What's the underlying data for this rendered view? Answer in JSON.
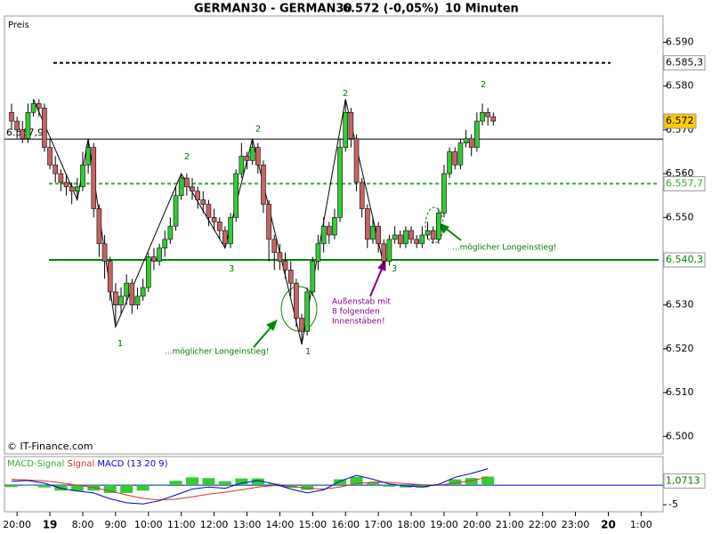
{
  "chart_data": [
    {
      "type": "candlestick",
      "title": "GERMAN30 - GERMAN30",
      "price_label": "6.572 (-0,05%)",
      "interval": "10 Minuten",
      "y_label": "Preis",
      "copyright": "© IT-Finance.com",
      "x": [
        0,
        1,
        2,
        3,
        4,
        5,
        6,
        7,
        8,
        9,
        10,
        11,
        12,
        13,
        14,
        15,
        16,
        17,
        18,
        19,
        20,
        21,
        22,
        23,
        24,
        25,
        26,
        27,
        28,
        29,
        30,
        31,
        32,
        33,
        34,
        35,
        36,
        37,
        38,
        39,
        40,
        41,
        42,
        43,
        44,
        45,
        46,
        47,
        48,
        49,
        50,
        51,
        52,
        53,
        54,
        55,
        56,
        57,
        58,
        59,
        60,
        61,
        62,
        63,
        64,
        65,
        66,
        67,
        68,
        69,
        70,
        71,
        72,
        73,
        74,
        75,
        76,
        77,
        78,
        79,
        80,
        81,
        82,
        83,
        84,
        85,
        86,
        87,
        88
      ],
      "open": [
        6574,
        6572,
        6570,
        6568,
        6574,
        6576,
        6575,
        6566,
        6562,
        6560,
        6558,
        6557,
        6556,
        6557,
        6562,
        6566,
        6552,
        6544,
        6540,
        6533,
        6530,
        6532,
        6535,
        6530,
        6532,
        6534,
        6541,
        6540,
        6543,
        6545,
        6548,
        6555,
        6559,
        6557,
        6556,
        6554,
        6553,
        6550,
        6549,
        6547,
        6544,
        6550,
        6560,
        6564,
        6563,
        6566,
        6562,
        6553,
        6545,
        6542,
        6540,
        6538,
        6535,
        6527,
        6524,
        6533,
        6540,
        6544,
        6548,
        6546,
        6550,
        6566,
        6574,
        6568,
        6558,
        6552,
        6545,
        6548,
        6544,
        6540,
        6545,
        6546,
        6544,
        6547,
        6545,
        6544,
        6546,
        6547,
        6545,
        6551,
        6560,
        6565,
        6562,
        6567,
        6568,
        6566,
        6572,
        6574,
        6573
      ],
      "high": [
        6576,
        6573,
        6572,
        6576,
        6577,
        6577,
        6576,
        6568,
        6564,
        6561,
        6560,
        6558,
        6559,
        6565,
        6568,
        6567,
        6553,
        6546,
        6541,
        6535,
        6534,
        6537,
        6536,
        6534,
        6536,
        6542,
        6543,
        6544,
        6547,
        6550,
        6557,
        6560,
        6560,
        6559,
        6557,
        6556,
        6554,
        6552,
        6550,
        6548,
        6551,
        6561,
        6567,
        6565,
        6568,
        6567,
        6563,
        6554,
        6546,
        6544,
        6542,
        6540,
        6536,
        6528,
        6534,
        6541,
        6546,
        6550,
        6549,
        6552,
        6568,
        6577,
        6575,
        6569,
        6559,
        6553,
        6550,
        6549,
        6545,
        6546,
        6548,
        6547,
        6548,
        6548,
        6546,
        6548,
        6549,
        6548,
        6552,
        6562,
        6566,
        6566,
        6568,
        6570,
        6569,
        6574,
        6576,
        6575,
        6574
      ],
      "low": [
        6570,
        6568,
        6567,
        6567,
        6573,
        6573,
        6565,
        6561,
        6558,
        6556,
        6555,
        6553,
        6554,
        6556,
        6560,
        6550,
        6541,
        6536,
        6531,
        6525,
        6528,
        6530,
        6528,
        6529,
        6531,
        6533,
        6538,
        6539,
        6541,
        6544,
        6547,
        6554,
        6555,
        6554,
        6552,
        6551,
        6548,
        6547,
        6545,
        6543,
        6543,
        6549,
        6559,
        6561,
        6562,
        6560,
        6551,
        6540,
        6538,
        6538,
        6536,
        6532,
        6525,
        6521,
        6523,
        6532,
        6538,
        6542,
        6544,
        6545,
        6549,
        6565,
        6566,
        6556,
        6550,
        6543,
        6544,
        6542,
        6539,
        6539,
        6544,
        6543,
        6543,
        6544,
        6543,
        6543,
        6545,
        6544,
        6544,
        6550,
        6559,
        6561,
        6561,
        6566,
        6564,
        6565,
        6571,
        6571,
        6571
      ],
      "close": [
        6572,
        6570,
        6568,
        6574,
        6576,
        6575,
        6566,
        6562,
        6560,
        6558,
        6557,
        6556,
        6557,
        6562,
        6566,
        6552,
        6544,
        6540,
        6533,
        6530,
        6532,
        6535,
        6530,
        6532,
        6534,
        6541,
        6540,
        6543,
        6545,
        6548,
        6555,
        6559,
        6557,
        6556,
        6554,
        6553,
        6550,
        6549,
        6547,
        6544,
        6550,
        6560,
        6564,
        6563,
        6566,
        6562,
        6553,
        6545,
        6542,
        6540,
        6538,
        6535,
        6527,
        6524,
        6533,
        6540,
        6544,
        6548,
        6546,
        6550,
        6566,
        6574,
        6568,
        6558,
        6552,
        6545,
        6548,
        6544,
        6540,
        6545,
        6546,
        6544,
        6547,
        6545,
        6544,
        6546,
        6547,
        6545,
        6551,
        6560,
        6565,
        6562,
        6567,
        6568,
        6566,
        6572,
        6574,
        6573,
        6572
      ],
      "up_color": "#33cc33",
      "down_color": "#c86464",
      "zigzag": {
        "x": [
          4,
          12,
          14,
          19,
          31,
          39,
          44,
          53,
          61,
          68
        ],
        "values": [
          6577,
          6554,
          6568,
          6525,
          6560,
          6543,
          6568,
          6521,
          6577,
          6539
        ]
      },
      "wave_labels": [
        "1",
        "2",
        "3",
        "2",
        "1",
        "2",
        "3",
        "2"
      ],
      "notes": [
        "...möglicher Longeinstieg!",
        "...möglicher Longeinstieg!"
      ],
      "outside_bar_note": [
        "Außenstab mit",
        "8 folgenden",
        "Innenstäben!"
      ],
      "levels": [
        {
          "value": 6585.3,
          "label": "6.585,3",
          "color": "#000000",
          "dash": true,
          "side": "right"
        },
        {
          "value": 6567.9,
          "label": "6.567,9",
          "color": "#000000",
          "dash": false,
          "side": "left"
        },
        {
          "value": 6557.7,
          "label": "6.557,7",
          "color": "#33aa33",
          "dash": true,
          "side": "right"
        },
        {
          "value": 6540.3,
          "label": "6.540,3",
          "color": "#008800",
          "dash": false,
          "side": "right"
        }
      ],
      "last": {
        "value": 6572,
        "label": "6.572"
      },
      "ylim": [
        6496,
        6596
      ],
      "yticks": [
        {
          "value": 6500,
          "label": "6.500"
        },
        {
          "value": 6510,
          "label": "6.510"
        },
        {
          "value": 6520,
          "label": "6.520"
        },
        {
          "value": 6530,
          "label": "6.530"
        },
        {
          "value": 6540,
          "label": "6.540"
        },
        {
          "value": 6550,
          "label": "6.550"
        },
        {
          "value": 6560,
          "label": "6.560"
        },
        {
          "value": 6570,
          "label": "6.570"
        },
        {
          "value": 6580,
          "label": "6.580"
        },
        {
          "value": 6590,
          "label": "6.590"
        }
      ],
      "xlim": [
        -1.3,
        119
      ],
      "xticks": [
        {
          "value": 1,
          "label": "20:00"
        },
        {
          "value": 7,
          "label": "19"
        },
        {
          "value": 13,
          "label": "8:00"
        },
        {
          "value": 19,
          "label": "9:00"
        },
        {
          "value": 25,
          "label": "10:00"
        },
        {
          "value": 31,
          "label": "11:00"
        },
        {
          "value": 37,
          "label": "12:00"
        },
        {
          "value": 43,
          "label": "13:00"
        },
        {
          "value": 49,
          "label": "14:00"
        },
        {
          "value": 55,
          "label": "15:00"
        },
        {
          "value": 61,
          "label": "16:00"
        },
        {
          "value": 67,
          "label": "17:00"
        },
        {
          "value": 73,
          "label": "18:00"
        },
        {
          "value": 79,
          "label": "19:00"
        },
        {
          "value": 85,
          "label": "20:00"
        },
        {
          "value": 91,
          "label": "21:00"
        },
        {
          "value": 97,
          "label": "22:00"
        },
        {
          "value": 103,
          "label": "23:00"
        },
        {
          "value": 109,
          "label": "20"
        },
        {
          "value": 115,
          "label": "1:00"
        }
      ]
    },
    {
      "type": "macd",
      "params": "(13 20 9)",
      "x": [
        0,
        3,
        6,
        9,
        12,
        15,
        18,
        21,
        24,
        27,
        30,
        33,
        36,
        39,
        42,
        45,
        48,
        51,
        54,
        57,
        60,
        63,
        66,
        69,
        72,
        75,
        78,
        81,
        84,
        87
      ],
      "series": [
        {
          "name": "MACD-Signal",
          "color": "#33cc33",
          "kind": "bar",
          "values": [
            -0.5,
            -0.1,
            -0.6,
            -1.4,
            -1.5,
            -1.4,
            -2.0,
            -2.0,
            -1.4,
            -0.2,
            1.1,
            2.0,
            1.8,
            1.0,
            1.7,
            1.7,
            0.4,
            -0.7,
            -1.2,
            -0.2,
            1.5,
            2.1,
            0.7,
            -0.4,
            -0.6,
            -0.6,
            0.2,
            1.5,
            1.8,
            2.2
          ]
        },
        {
          "name": "Signal",
          "color": "#cc3333",
          "kind": "line",
          "values": [
            1.5,
            1.3,
            1.1,
            0.6,
            0,
            -0.6,
            -1.5,
            -2.5,
            -3.4,
            -3.8,
            -3.6,
            -3.0,
            -2.3,
            -1.8,
            -1.2,
            -0.5,
            -0.1,
            -0.3,
            -0.8,
            -1.0,
            -0.5,
            0.4,
            0.8,
            0.7,
            0.4,
            0.1,
            0,
            0.5,
            1.2,
            2.0
          ]
        },
        {
          "name": "MACD",
          "color": "#0000cc",
          "kind": "line",
          "values": [
            1.0,
            1.2,
            0.5,
            -0.8,
            -1.5,
            -2.0,
            -3.5,
            -4.5,
            -4.8,
            -4.0,
            -2.5,
            -1.0,
            -0.5,
            -0.8,
            0.5,
            1.2,
            0.3,
            -1.0,
            -2.0,
            -1.2,
            1.0,
            2.5,
            1.5,
            0.3,
            -0.2,
            -0.5,
            0.2,
            2.0,
            3.0,
            4.2
          ]
        }
      ],
      "last": {
        "value": 1.0713,
        "label": "1,0713"
      },
      "ylim": [
        -6.8,
        7.3
      ],
      "yticks": [
        -5
      ],
      "xlim": [
        -1.3,
        119
      ]
    }
  ]
}
